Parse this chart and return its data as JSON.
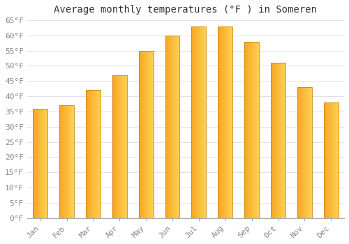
{
  "title": "Average monthly temperatures (°F ) in Someren",
  "months": [
    "Jan",
    "Feb",
    "Mar",
    "Apr",
    "May",
    "Jun",
    "Jul",
    "Aug",
    "Sep",
    "Oct",
    "Nov",
    "Dec"
  ],
  "values": [
    36,
    37,
    42,
    47,
    55,
    60,
    63,
    63,
    58,
    51,
    43,
    38
  ],
  "bar_color_left": "#F5A623",
  "bar_color_right": "#FFD050",
  "bar_color_edge": "#C8850A",
  "background_color": "#FFFFFF",
  "grid_color": "#E0E0E8",
  "ylim": [
    0,
    65
  ],
  "ytick_step": 5,
  "title_fontsize": 10,
  "tick_fontsize": 8,
  "font_family": "monospace",
  "bar_width": 0.55
}
